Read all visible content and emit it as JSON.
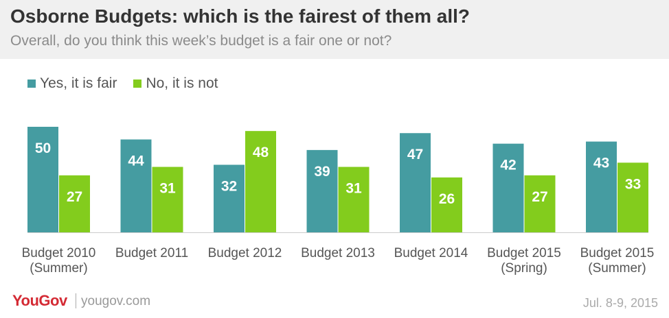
{
  "header": {
    "title": "Osborne Budgets: which is the fairest of them all?",
    "subtitle": "Overall, do you think this week’s budget is a fair one or not?"
  },
  "footer": {
    "brand": "YouGov",
    "url": "yougov.com",
    "date": "Jul. 8-9, 2015"
  },
  "colors": {
    "yes": "#459ca1",
    "no": "#83cc1d",
    "axis": "#cccccc"
  },
  "chart_data": {
    "type": "bar",
    "title": "Osborne Budgets: which is the fairest of them all?",
    "subtitle": "Overall, do you think this week’s budget is a fair one or not?",
    "xlabel": "",
    "ylabel": "",
    "ylim": [
      0,
      52
    ],
    "grid": false,
    "legend_position": "top-left",
    "categories": [
      "Budget 2010 (Summer)",
      "Budget 2011",
      "Budget 2012",
      "Budget 2013",
      "Budget 2014",
      "Budget 2015 (Spring)",
      "Budget 2015 (Summer)"
    ],
    "category_lines": [
      [
        "Budget 2010",
        "(Summer)"
      ],
      [
        "Budget 2011"
      ],
      [
        "Budget 2012"
      ],
      [
        "Budget 2013"
      ],
      [
        "Budget 2014"
      ],
      [
        "Budget 2015",
        "(Spring)"
      ],
      [
        "Budget 2015",
        "(Summer)"
      ]
    ],
    "series": [
      {
        "name": "Yes, it is fair",
        "values": [
          50,
          44,
          32,
          39,
          47,
          42,
          43
        ]
      },
      {
        "name": "No, it is not",
        "values": [
          27,
          31,
          48,
          31,
          26,
          27,
          33
        ]
      }
    ]
  }
}
